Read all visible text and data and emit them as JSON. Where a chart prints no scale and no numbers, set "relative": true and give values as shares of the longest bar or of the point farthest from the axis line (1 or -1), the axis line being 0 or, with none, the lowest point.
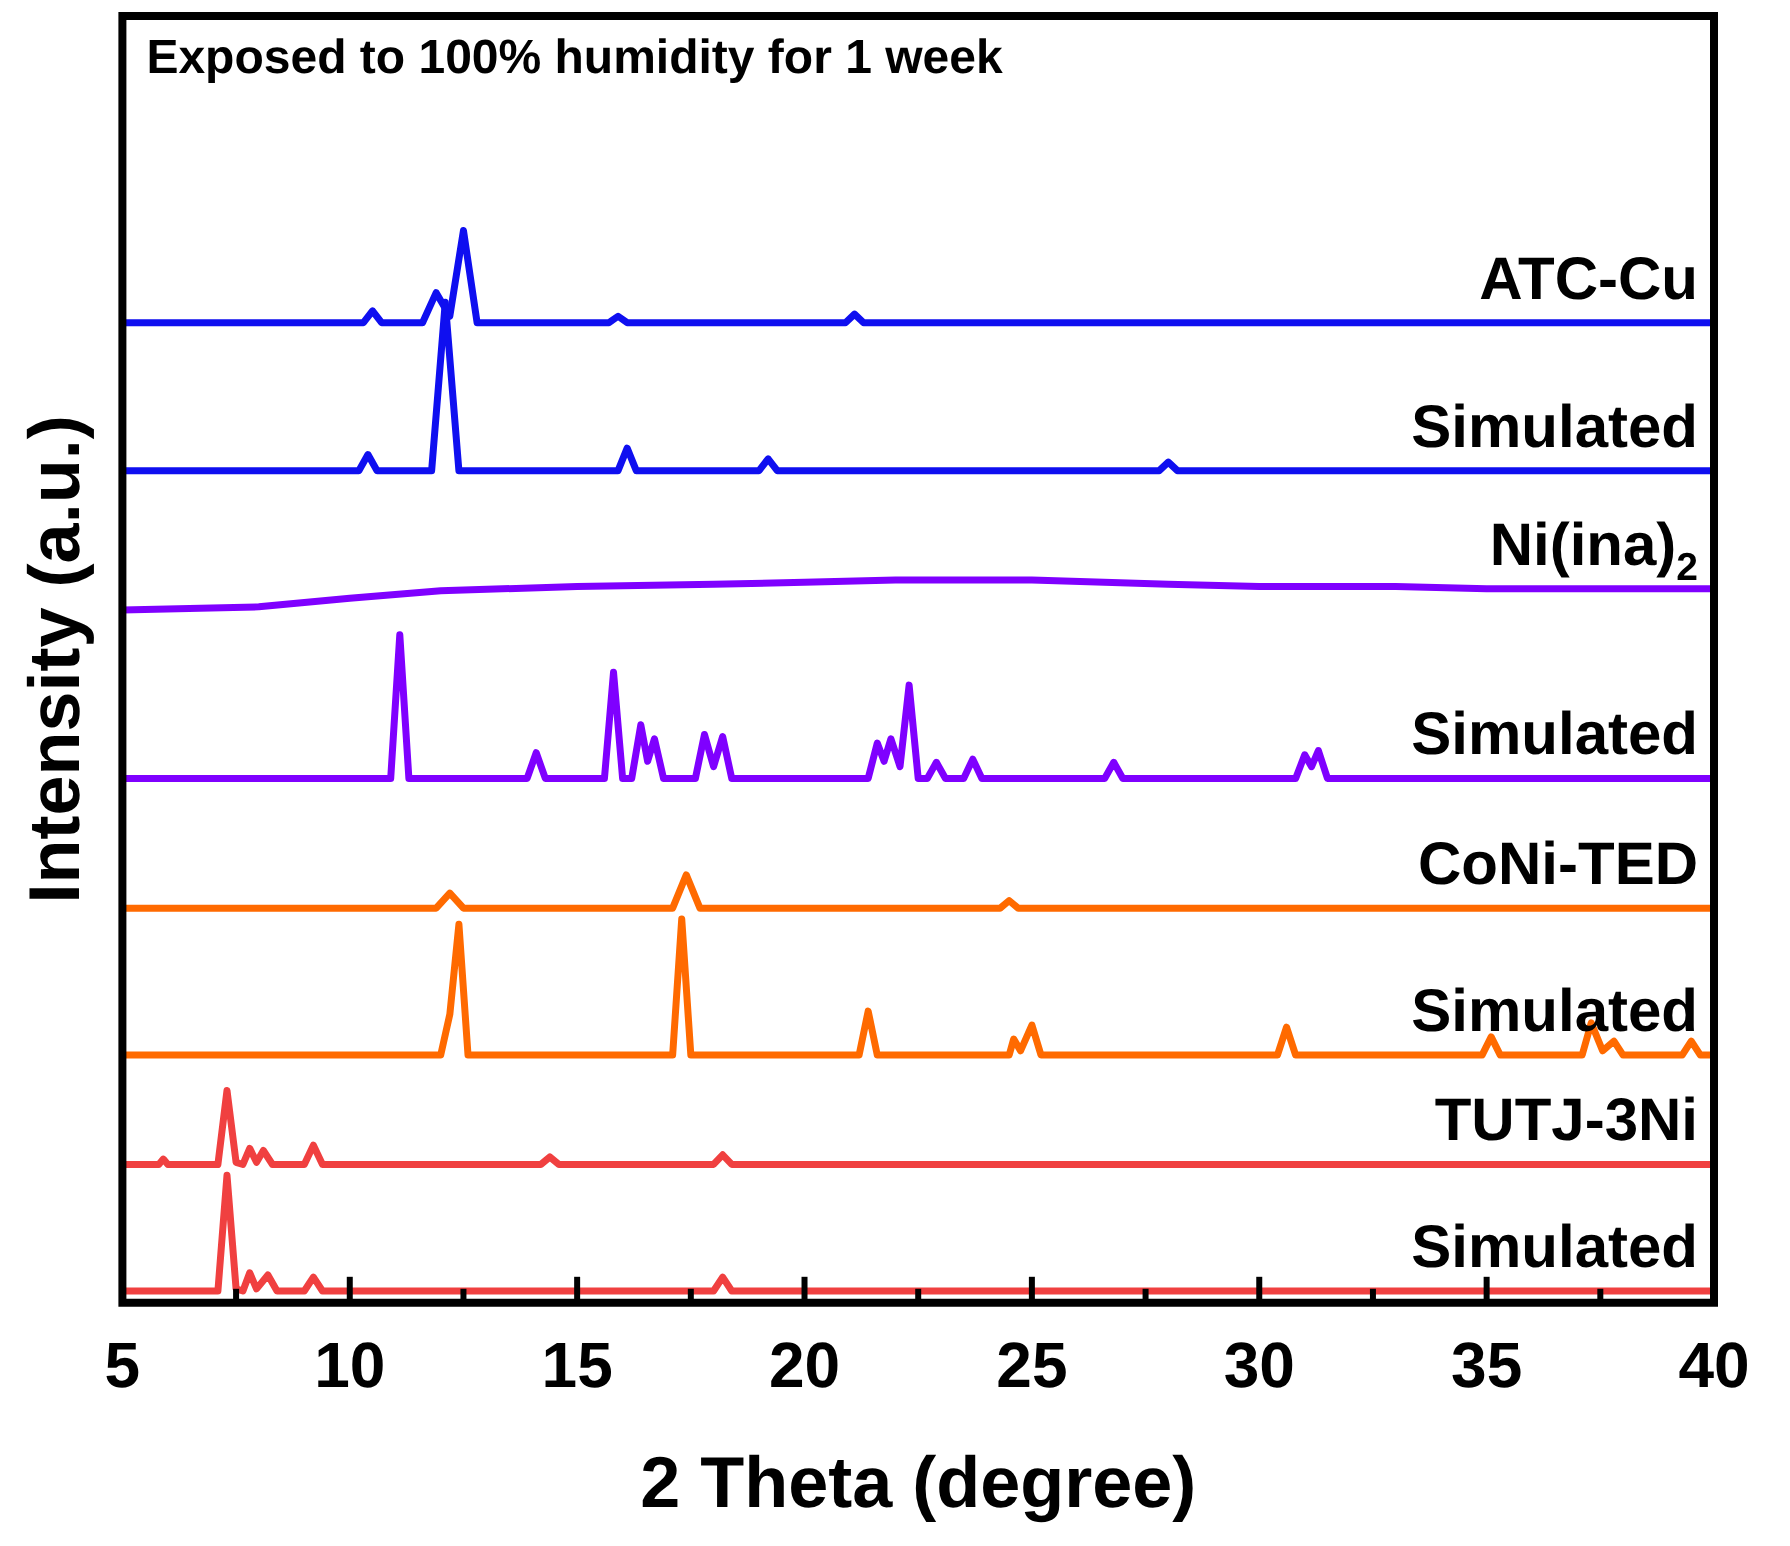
{
  "chart_data": {
    "type": "line",
    "title": "Exposed to 100% humidity for 1 week",
    "xlabel": "2 Theta (degree)",
    "ylabel": "Intensity (a.u.)",
    "relative": true,
    "marker": "none",
    "tick_labels": "x",
    "xlim": [
      5,
      40
    ],
    "xticks": [
      5,
      {
        "value": 7.5,
        "label": null
      },
      10,
      {
        "value": 12.5,
        "label": null
      },
      15,
      {
        "value": 17.5,
        "label": null
      },
      20,
      {
        "value": 22.5,
        "label": null
      },
      25,
      {
        "value": 27.5,
        "label": null
      },
      30,
      {
        "value": 32.5,
        "label": null
      },
      35,
      {
        "value": 37.5,
        "label": null
      },
      40
    ],
    "series": [
      {
        "name": "ATC-Cu",
        "color": "#0f0ff0",
        "x": [
          5,
          10.3,
          10.5,
          10.7,
          11.6,
          11.9,
          12.2,
          12.5,
          12.8,
          15.7,
          15.9,
          16.1,
          20.9,
          21.1,
          21.3,
          40
        ],
        "values": [
          0.914,
          0.914,
          0.925,
          0.914,
          0.914,
          0.942,
          0.92,
          1.0,
          0.914,
          0.914,
          0.92,
          0.914,
          0.914,
          0.922,
          0.914,
          0.914
        ]
      },
      {
        "name": "Simulated",
        "color": "#0f0ff0",
        "x": [
          5,
          10.2,
          10.4,
          10.6,
          11.8,
          12.1,
          12.4,
          15.9,
          16.1,
          16.3,
          19.0,
          19.2,
          19.4,
          27.8,
          28.0,
          28.2,
          40
        ],
        "values": [
          0.776,
          0.776,
          0.791,
          0.776,
          0.776,
          0.933,
          0.776,
          0.776,
          0.797,
          0.776,
          0.776,
          0.787,
          0.776,
          0.776,
          0.784,
          0.776,
          0.776
        ]
      },
      {
        "name": "Ni(ina)$_{2}$",
        "color": "#7f00ff",
        "x": [
          5,
          8,
          10,
          12,
          15,
          18,
          20,
          22,
          25,
          28,
          30,
          33,
          35,
          38,
          40
        ],
        "values": [
          0.646,
          0.649,
          0.657,
          0.664,
          0.668,
          0.67,
          0.672,
          0.674,
          0.674,
          0.67,
          0.668,
          0.668,
          0.666,
          0.666,
          0.666
        ]
      },
      {
        "name": "Simulated",
        "color": "#7f00ff",
        "x": [
          5,
          10.9,
          11.1,
          11.3,
          13.9,
          14.1,
          14.3,
          15.6,
          15.8,
          16.0,
          16.2,
          16.4,
          16.55,
          16.7,
          16.9,
          17.6,
          17.8,
          18.0,
          18.2,
          18.4,
          21.4,
          21.6,
          21.75,
          21.9,
          22.1,
          22.3,
          22.5,
          22.7,
          22.9,
          23.1,
          23.5,
          23.7,
          23.9,
          26.6,
          26.8,
          27.0,
          30.8,
          31.0,
          31.15,
          31.3,
          31.5,
          40
        ],
        "values": [
          0.489,
          0.489,
          0.623,
          0.489,
          0.489,
          0.513,
          0.489,
          0.489,
          0.588,
          0.489,
          0.489,
          0.539,
          0.505,
          0.526,
          0.489,
          0.489,
          0.53,
          0.5,
          0.528,
          0.489,
          0.489,
          0.522,
          0.505,
          0.526,
          0.5,
          0.576,
          0.489,
          0.489,
          0.504,
          0.489,
          0.489,
          0.507,
          0.489,
          0.489,
          0.504,
          0.489,
          0.489,
          0.511,
          0.5,
          0.515,
          0.489,
          0.489
        ]
      },
      {
        "name": "CoNi-TED",
        "color": "#ff6a00",
        "x": [
          5,
          11.9,
          12.2,
          12.5,
          17.1,
          17.4,
          17.7,
          24.3,
          24.5,
          24.7,
          40
        ],
        "values": [
          0.368,
          0.368,
          0.382,
          0.368,
          0.368,
          0.399,
          0.368,
          0.368,
          0.375,
          0.368,
          0.368
        ]
      },
      {
        "name": "Simulated",
        "color": "#ff6a00",
        "x": [
          5,
          12.0,
          12.2,
          12.4,
          12.6,
          17.1,
          17.3,
          17.5,
          21.2,
          21.4,
          21.6,
          24.5,
          24.6,
          24.75,
          25.0,
          25.2,
          30.4,
          30.6,
          30.8,
          34.9,
          35.1,
          35.3,
          37.1,
          37.3,
          37.55,
          37.8,
          38.0,
          39.3,
          39.5,
          39.7,
          40
        ],
        "values": [
          0.231,
          0.231,
          0.269,
          0.353,
          0.231,
          0.231,
          0.358,
          0.231,
          0.231,
          0.272,
          0.231,
          0.231,
          0.246,
          0.235,
          0.259,
          0.231,
          0.231,
          0.257,
          0.231,
          0.231,
          0.248,
          0.231,
          0.231,
          0.261,
          0.235,
          0.244,
          0.231,
          0.231,
          0.244,
          0.231,
          0.231
        ]
      },
      {
        "name": "TUTJ-3Ni",
        "color": "#f04040",
        "x": [
          5,
          5.8,
          5.9,
          6.0,
          7.1,
          7.3,
          7.5,
          7.65,
          7.8,
          7.95,
          8.1,
          8.3,
          9.0,
          9.2,
          9.4,
          14.2,
          14.4,
          14.6,
          18.0,
          18.2,
          18.4,
          40
        ],
        "values": [
          0.129,
          0.129,
          0.134,
          0.129,
          0.129,
          0.198,
          0.131,
          0.129,
          0.144,
          0.131,
          0.142,
          0.129,
          0.129,
          0.147,
          0.129,
          0.129,
          0.136,
          0.129,
          0.129,
          0.138,
          0.129,
          0.129
        ]
      },
      {
        "name": "Simulated",
        "color": "#f04040",
        "x": [
          5,
          7.1,
          7.3,
          7.5,
          7.65,
          7.8,
          7.95,
          8.2,
          8.4,
          9.0,
          9.2,
          9.4,
          18.0,
          18.2,
          18.4,
          40
        ],
        "values": [
          0.011,
          0.011,
          0.119,
          0.013,
          0.011,
          0.028,
          0.013,
          0.026,
          0.011,
          0.011,
          0.024,
          0.011,
          0.011,
          0.024,
          0.011,
          0.011
        ]
      }
    ]
  }
}
